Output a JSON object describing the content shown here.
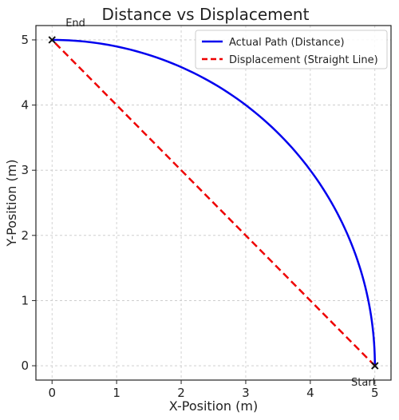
{
  "chart_data": {
    "type": "line",
    "title": "Distance vs Displacement",
    "xlabel": "X-Position (m)",
    "ylabel": "Y-Position (m)",
    "xlim": [
      -0.25,
      5.25
    ],
    "ylim": [
      -0.22,
      5.22
    ],
    "xticks": [
      "0",
      "1",
      "2",
      "3",
      "4",
      "5"
    ],
    "yticks": [
      "0",
      "1",
      "2",
      "3",
      "4",
      "5"
    ],
    "grid": true,
    "legend_position": "top-right",
    "series": [
      {
        "name": "Actual Path (Distance)",
        "color": "#0000ee",
        "style": "solid",
        "points": [
          [
            5,
            0
          ],
          [
            4.924,
            0.868
          ],
          [
            4.698,
            1.71
          ],
          [
            4.33,
            2.5
          ],
          [
            3.83,
            3.214
          ],
          [
            3.214,
            3.83
          ],
          [
            2.5,
            4.33
          ],
          [
            1.71,
            4.698
          ],
          [
            0.868,
            4.924
          ],
          [
            0,
            5
          ]
        ]
      },
      {
        "name": "Displacement (Straight Line)",
        "color": "#ee0000",
        "style": "dashed",
        "points": [
          [
            5,
            0
          ],
          [
            0,
            5
          ]
        ]
      }
    ],
    "markers": [
      {
        "label": "Start",
        "x": 5,
        "y": 0
      },
      {
        "label": "End",
        "x": 0,
        "y": 5
      }
    ]
  }
}
